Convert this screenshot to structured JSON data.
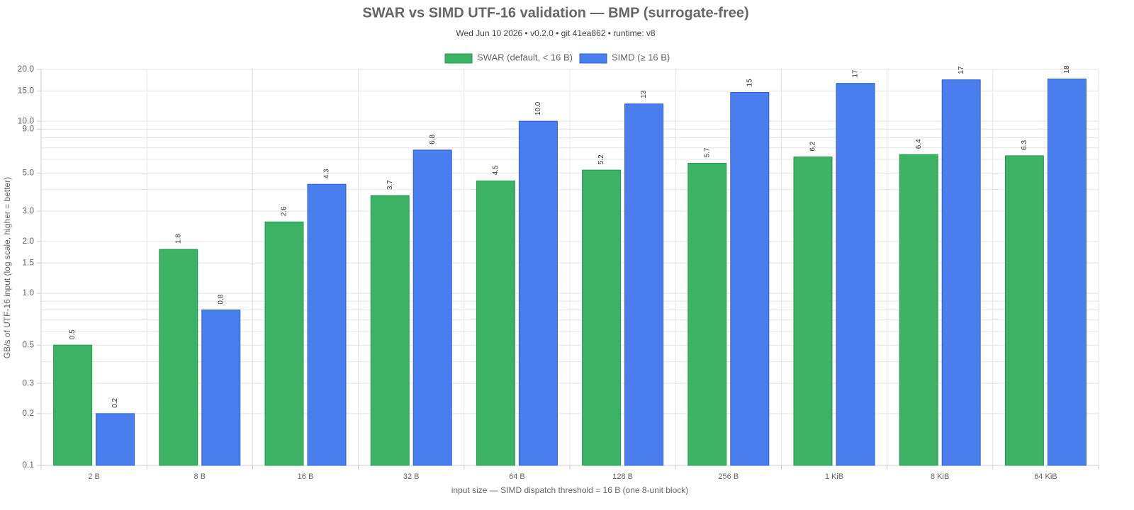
{
  "chart_data": {
    "type": "bar",
    "title": "SWAR vs SIMD UTF-16 validation — BMP (surrogate-free)",
    "subtitle": "Wed Jun 10 2026 • v0.2.0 • git 41ea862 • runtime: v8",
    "x_label": "input size — SIMD dispatch threshold = 16 B (one 8-unit block)",
    "y_label": "GB/s of UTF-16 input (log scale, higher = better)",
    "categories": [
      "2 B",
      "8 B",
      "16 B",
      "32 B",
      "64 B",
      "128 B",
      "256 B",
      "1 KiB",
      "8 KiB",
      "64 KiB"
    ],
    "series": [
      {
        "name": "SWAR (default, < 16 B)",
        "color": "#3cb264",
        "border": "#2a9a50",
        "values": [
          0.5,
          1.8,
          2.6,
          3.7,
          4.5,
          5.2,
          5.7,
          6.2,
          6.4,
          6.3
        ],
        "value_labels": [
          "0.5",
          "1.8",
          "2.6",
          "3.7",
          "4.5",
          "5.2",
          "5.7",
          "6.2",
          "6.4",
          "6.3"
        ]
      },
      {
        "name": "SIMD (≥ 16 B)",
        "color": "#4a7ded",
        "border": "#2f5fd0",
        "values": [
          0.2,
          0.8,
          4.3,
          6.8,
          10.0,
          12.6,
          14.7,
          16.6,
          17.4,
          17.6
        ],
        "value_labels": [
          "0.2",
          "0.8",
          "4.3",
          "6.8",
          "10.0",
          "13",
          "15",
          "17",
          "17",
          "18"
        ]
      }
    ],
    "log_scale": true,
    "grid": true,
    "legend": "top",
    "ylim": [
      0.1,
      20
    ],
    "yticks": [
      0.1,
      0.2,
      0.3,
      0.5,
      {
        "value": 1,
        "label": "1.0"
      },
      1.5,
      {
        "value": 2,
        "label": "2.0"
      },
      {
        "value": 3,
        "label": "3.0"
      },
      {
        "value": 5,
        "label": "5.0"
      },
      {
        "value": 9,
        "label": "9.0"
      },
      {
        "value": 10,
        "label": "10.0"
      },
      {
        "value": 15,
        "label": "15.0"
      },
      {
        "value": 20,
        "label": "20.0"
      }
    ],
    "minor_grid": [
      0.4,
      0.6,
      0.7,
      0.8,
      0.9,
      4,
      6,
      7,
      8
    ]
  }
}
